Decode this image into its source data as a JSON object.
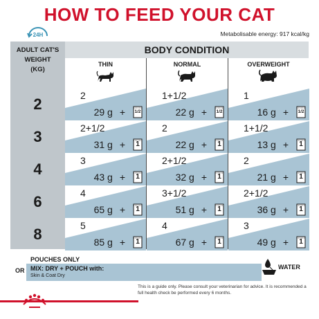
{
  "title": "HOW TO FEED YOUR CAT",
  "clock_label": "24H",
  "energy": "Metabolisable energy: 917 kcal/kg",
  "left_header": [
    "ADULT CAT'S",
    "WEIGHT",
    "(KG)"
  ],
  "body_condition_label": "BODY CONDITION",
  "columns": [
    {
      "label": "THIN",
      "icon": "thin-cat-icon"
    },
    {
      "label": "NORMAL",
      "icon": "normal-cat-icon"
    },
    {
      "label": "OVERWEIGHT",
      "icon": "overweight-cat-icon"
    }
  ],
  "rows": [
    {
      "weight": "2",
      "cells": [
        {
          "dry": "2",
          "grams": "29 g",
          "plus": "+",
          "pouch": "1/2"
        },
        {
          "dry": "1+1/2",
          "grams": "22 g",
          "plus": "+",
          "pouch": "1/2"
        },
        {
          "dry": "1",
          "grams": "16 g",
          "plus": "+",
          "pouch": "1/2"
        }
      ]
    },
    {
      "weight": "3",
      "cells": [
        {
          "dry": "2+1/2",
          "grams": "31 g",
          "plus": "+",
          "pouch": "1"
        },
        {
          "dry": "2",
          "grams": "22 g",
          "plus": "+",
          "pouch": "1"
        },
        {
          "dry": "1+1/2",
          "grams": "13 g",
          "plus": "+",
          "pouch": "1"
        }
      ]
    },
    {
      "weight": "4",
      "cells": [
        {
          "dry": "3",
          "grams": "43 g",
          "plus": "+",
          "pouch": "1"
        },
        {
          "dry": "2+1/2",
          "grams": "32 g",
          "plus": "+",
          "pouch": "1"
        },
        {
          "dry": "2",
          "grams": "21 g",
          "plus": "+",
          "pouch": "1"
        }
      ]
    },
    {
      "weight": "6",
      "cells": [
        {
          "dry": "4",
          "grams": "65 g",
          "plus": "+",
          "pouch": "1"
        },
        {
          "dry": "3+1/2",
          "grams": "51 g",
          "plus": "+",
          "pouch": "1"
        },
        {
          "dry": "2+1/2",
          "grams": "36 g",
          "plus": "+",
          "pouch": "1"
        }
      ]
    },
    {
      "weight": "8",
      "cells": [
        {
          "dry": "5",
          "grams": "85 g",
          "plus": "+",
          "pouch": "1"
        },
        {
          "dry": "4",
          "grams": "67 g",
          "plus": "+",
          "pouch": "1"
        },
        {
          "dry": "3",
          "grams": "49 g",
          "plus": "+",
          "pouch": "1"
        }
      ]
    }
  ],
  "pouches_only": "POUCHES ONLY",
  "or_label": "OR",
  "mix_label": "MIX: DRY + POUCH with:",
  "mix_product": "Skin & Coat Dry",
  "water_label": "WATER",
  "disclaimer": "This is a guide only. Please consult your veterinarian for advice. It is recommended a full health check be performed every 6 months.",
  "colors": {
    "brand_red": "#d0112b",
    "band_blue": "#a9c4d4",
    "panel_grey": "#bfc6cb"
  }
}
